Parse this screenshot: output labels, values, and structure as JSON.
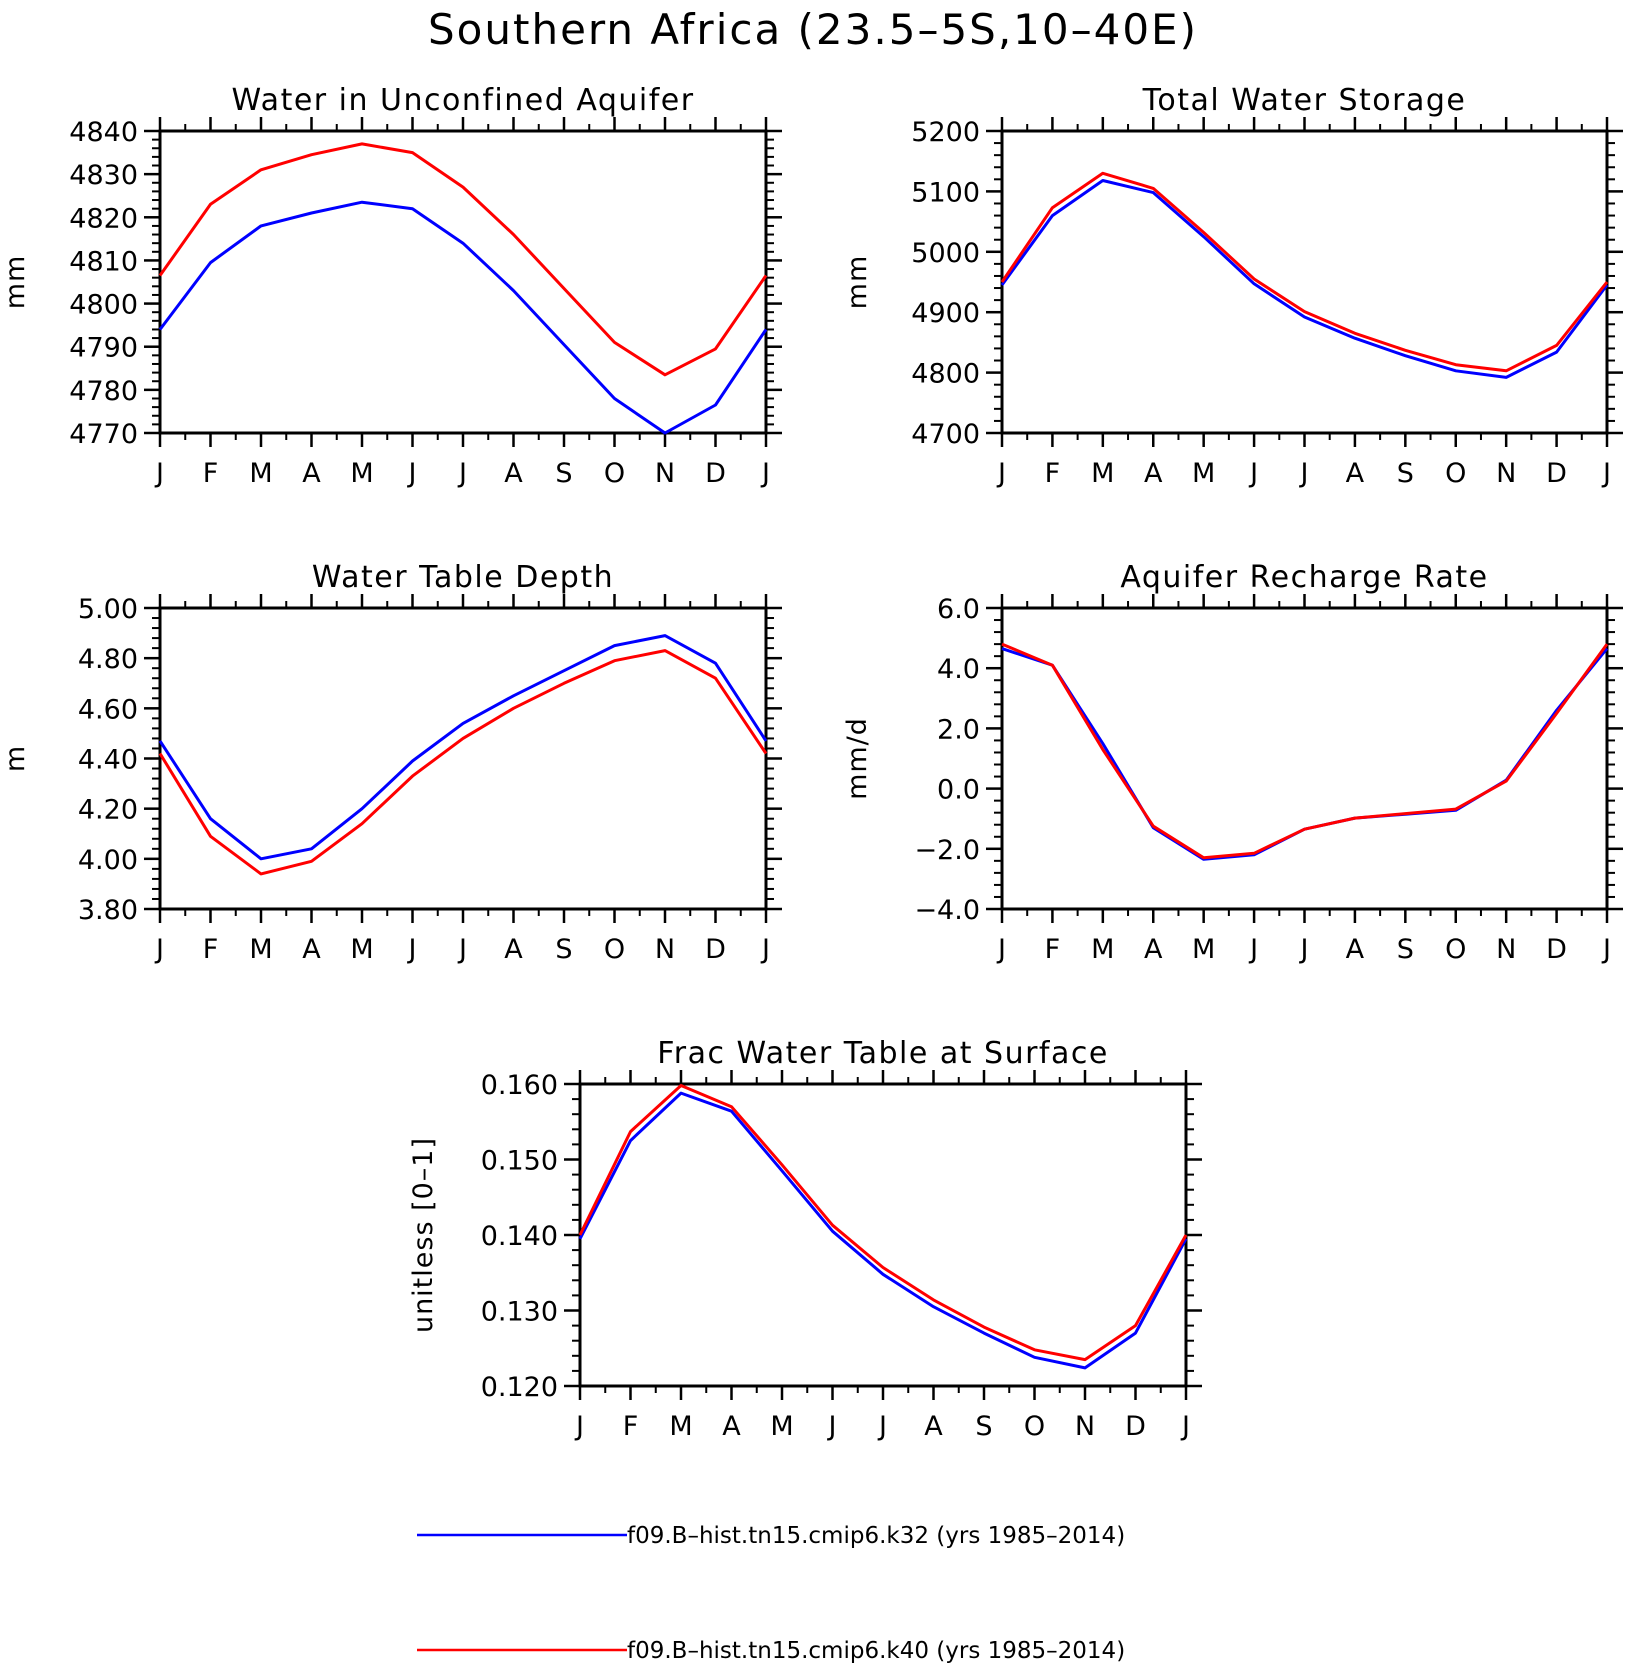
{
  "title": "Southern Africa (23.5–5S,10–40E)",
  "legend": [
    {
      "label": "f09.B–hist.tn15.cmip6.k32 (yrs 1985–2014)",
      "color": "#0000ff"
    },
    {
      "label": "f09.B–hist.tn15.cmip6.k40 (yrs 1985–2014)",
      "color": "#ff0000"
    }
  ],
  "chart_data": [
    {
      "type": "line",
      "title": "Water in Unconfined Aquifer",
      "ylabel": "mm",
      "x": [
        "J",
        "F",
        "M",
        "A",
        "M",
        "J",
        "J",
        "A",
        "S",
        "O",
        "N",
        "D",
        "J"
      ],
      "ylim": [
        4770,
        4840
      ],
      "yticks": [
        "4840",
        "4830",
        "4820",
        "4810",
        "4800",
        "4790",
        "4780",
        "4770"
      ],
      "series": [
        {
          "color": "#0000ff",
          "values": [
            4794,
            4809.5,
            4818,
            4821,
            4823.5,
            4822,
            4814,
            4803,
            4790.5,
            4778,
            4770,
            4776.5,
            4794
          ]
        },
        {
          "color": "#ff0000",
          "values": [
            4806.5,
            4823,
            4831,
            4834.5,
            4837,
            4835,
            4827,
            4816,
            4803.5,
            4791,
            4783.5,
            4789.5,
            4806.5
          ]
        }
      ]
    },
    {
      "type": "line",
      "title": "Total Water Storage",
      "ylabel": "mm",
      "x": [
        "J",
        "F",
        "M",
        "A",
        "M",
        "J",
        "J",
        "A",
        "S",
        "O",
        "N",
        "D",
        "J"
      ],
      "ylim": [
        4700,
        5200
      ],
      "yticks": [
        "5200",
        "5100",
        "5000",
        "4900",
        "4800",
        "4700"
      ],
      "series": [
        {
          "color": "#0000ff",
          "values": [
            4945,
            5060,
            5118,
            5098,
            5025,
            4947,
            4892,
            4857,
            4828,
            4803,
            4792,
            4834,
            4945
          ]
        },
        {
          "color": "#ff0000",
          "values": [
            4950,
            5073,
            5130,
            5105,
            5032,
            4955,
            4901,
            4865,
            4837,
            4813,
            4803,
            4845,
            4950
          ]
        }
      ]
    },
    {
      "type": "line",
      "title": "Water Table Depth",
      "ylabel": "m",
      "x": [
        "J",
        "F",
        "M",
        "A",
        "M",
        "J",
        "J",
        "A",
        "S",
        "O",
        "N",
        "D",
        "J"
      ],
      "ylim": [
        3.8,
        5.0
      ],
      "yticks": [
        "5.00",
        "4.80",
        "4.60",
        "4.40",
        "4.20",
        "4.00",
        "3.80"
      ],
      "series": [
        {
          "color": "#0000ff",
          "values": [
            4.47,
            4.16,
            4.0,
            4.04,
            4.2,
            4.39,
            4.54,
            4.65,
            4.75,
            4.85,
            4.89,
            4.78,
            4.47
          ]
        },
        {
          "color": "#ff0000",
          "values": [
            4.42,
            4.09,
            3.94,
            3.99,
            4.14,
            4.33,
            4.48,
            4.6,
            4.7,
            4.79,
            4.83,
            4.72,
            4.42
          ]
        }
      ]
    },
    {
      "type": "line",
      "title": "Aquifer Recharge Rate",
      "ylabel": "mm/d",
      "x": [
        "J",
        "F",
        "M",
        "A",
        "M",
        "J",
        "J",
        "A",
        "S",
        "O",
        "N",
        "D",
        "J"
      ],
      "ylim": [
        -4.0,
        6.0
      ],
      "yticks": [
        "6.0",
        "4.0",
        "2.0",
        "0.0",
        "−2.0",
        "−4.0"
      ],
      "series": [
        {
          "color": "#0000ff",
          "values": [
            4.65,
            4.1,
            1.5,
            -1.3,
            -2.35,
            -2.2,
            -1.35,
            -0.98,
            -0.85,
            -0.72,
            0.28,
            2.6,
            4.65
          ]
        },
        {
          "color": "#ff0000",
          "values": [
            4.8,
            4.1,
            1.3,
            -1.25,
            -2.3,
            -2.15,
            -1.35,
            -0.98,
            -0.83,
            -0.68,
            0.25,
            2.5,
            4.8
          ]
        }
      ]
    },
    {
      "type": "line",
      "title": "Frac Water Table at Surface",
      "ylabel": "unitless [0–1]",
      "x": [
        "J",
        "F",
        "M",
        "A",
        "M",
        "J",
        "J",
        "A",
        "S",
        "O",
        "N",
        "D",
        "J"
      ],
      "ylim": [
        0.12,
        0.16
      ],
      "yticks": [
        "0.160",
        "0.150",
        "0.140",
        "0.130",
        "0.120"
      ],
      "series": [
        {
          "color": "#0000ff",
          "values": [
            0.1395,
            0.1525,
            0.1588,
            0.1564,
            0.1485,
            0.1405,
            0.1348,
            0.1305,
            0.127,
            0.1238,
            0.1224,
            0.127,
            0.1395
          ]
        },
        {
          "color": "#ff0000",
          "values": [
            0.14,
            0.1537,
            0.1598,
            0.157,
            0.1493,
            0.1413,
            0.1357,
            0.1314,
            0.1278,
            0.1248,
            0.1235,
            0.128,
            0.14
          ]
        }
      ]
    }
  ]
}
